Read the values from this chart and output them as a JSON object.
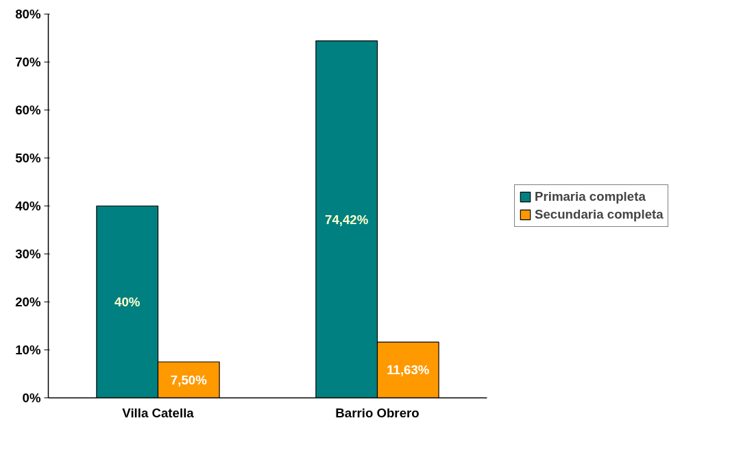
{
  "chart_data": {
    "type": "bar",
    "categories": [
      "Villa Catella",
      "Barrio Obrero"
    ],
    "series": [
      {
        "name": "Primaria completa",
        "color": "#008080",
        "values": [
          40,
          74.42
        ],
        "value_labels": [
          "40%",
          "74,42%"
        ]
      },
      {
        "name": "Secundaria completa",
        "color": "#ff9900",
        "values": [
          7.5,
          11.63
        ],
        "value_labels": [
          "7,50%",
          "11,63%"
        ]
      }
    ],
    "ylim": [
      0,
      80
    ],
    "yticks": [
      {
        "value": 0,
        "label": "0%"
      },
      {
        "value": 10,
        "label": "10%"
      },
      {
        "value": 20,
        "label": "20%"
      },
      {
        "value": 30,
        "label": "30%"
      },
      {
        "value": 40,
        "label": "40%"
      },
      {
        "value": 50,
        "label": "50%"
      },
      {
        "value": 60,
        "label": "60%"
      },
      {
        "value": 70,
        "label": "70%"
      },
      {
        "value": 80,
        "label": "80%"
      }
    ],
    "grid": false,
    "legend": "right"
  }
}
